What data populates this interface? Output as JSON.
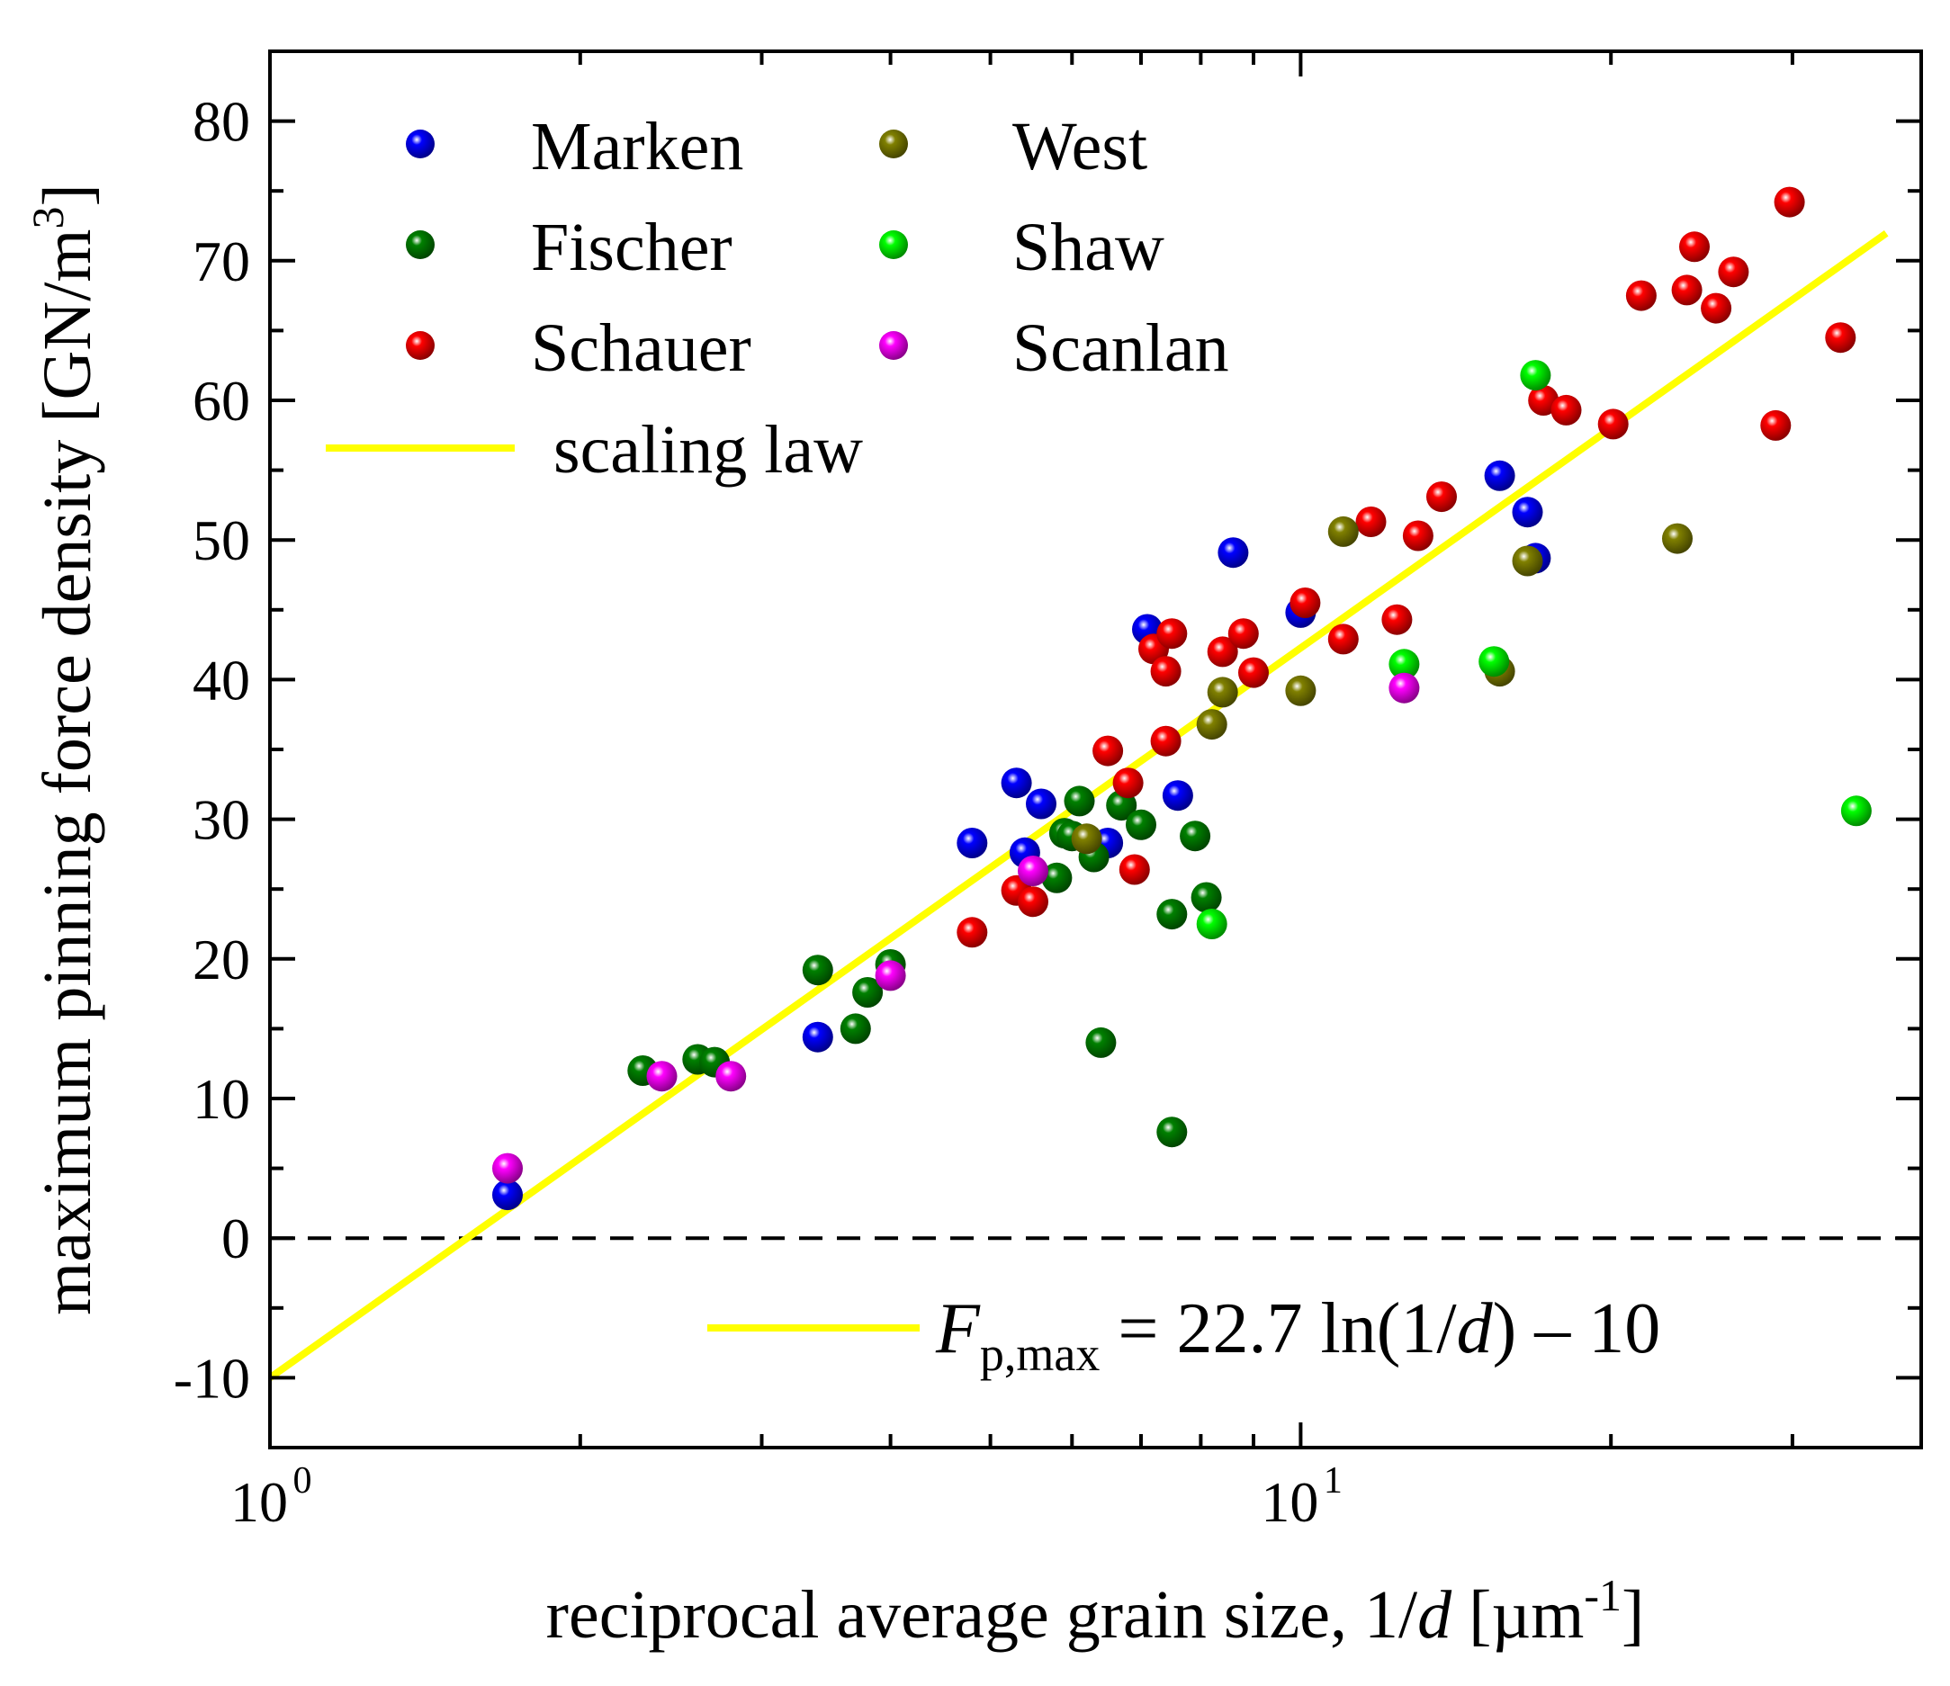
{
  "chart_data": {
    "type": "scatter",
    "x_scale": "log",
    "xlim": [
      1,
      40
    ],
    "ylim": [
      -15,
      85
    ],
    "grid": false,
    "legend_position": "top-left",
    "xlabel": {
      "main": "reciprocal average grain size, 1/",
      "italic": "d",
      "unit_open": " [µm",
      "unit_sup": "-1",
      "unit_close": "]"
    },
    "ylabel": {
      "main": "maximum pinning force density [GN/m",
      "sup": "3",
      "close": "]"
    },
    "x_ticks": [
      {
        "value": 1,
        "base": "10",
        "exp": "0"
      },
      {
        "value": 10,
        "base": "10",
        "exp": "1"
      }
    ],
    "x_minor_ticks": [
      2,
      3,
      4,
      5,
      6,
      7,
      8,
      9,
      20,
      30
    ],
    "y_ticks": [
      {
        "value": -10,
        "label": "-10"
      },
      {
        "value": 0,
        "label": "0"
      },
      {
        "value": 10,
        "label": "10"
      },
      {
        "value": 20,
        "label": "20"
      },
      {
        "value": 30,
        "label": "30"
      },
      {
        "value": 40,
        "label": "40"
      },
      {
        "value": 50,
        "label": "50"
      },
      {
        "value": 60,
        "label": "60"
      },
      {
        "value": 70,
        "label": "70"
      },
      {
        "value": 80,
        "label": "80"
      }
    ],
    "y_minor_step": 5,
    "reference_line": {
      "y": 0,
      "style": "dashed",
      "color": "#000000"
    },
    "series": [
      {
        "name": "Marken",
        "color": "#0000ff",
        "points": [
          [
            1.7,
            3.1
          ],
          [
            3.4,
            14.4
          ],
          [
            4.8,
            28.3
          ],
          [
            5.3,
            32.6
          ],
          [
            5.4,
            27.6
          ],
          [
            5.6,
            31.1
          ],
          [
            6.5,
            28.3
          ],
          [
            7.1,
            43.6
          ],
          [
            7.6,
            31.7
          ],
          [
            8.6,
            49.1
          ],
          [
            10.0,
            44.8
          ],
          [
            15.6,
            54.6
          ],
          [
            16.6,
            52.0
          ],
          [
            16.9,
            48.7
          ]
        ]
      },
      {
        "name": "Fischer",
        "color": "#008000",
        "points": [
          [
            2.3,
            12.0
          ],
          [
            2.6,
            12.8
          ],
          [
            2.7,
            12.6
          ],
          [
            3.4,
            19.2
          ],
          [
            3.7,
            15.0
          ],
          [
            3.8,
            17.6
          ],
          [
            4.0,
            19.6
          ],
          [
            5.8,
            25.8
          ],
          [
            5.9,
            29.0
          ],
          [
            6.0,
            28.8
          ],
          [
            6.1,
            31.3
          ],
          [
            6.3,
            27.3
          ],
          [
            6.4,
            14.0
          ],
          [
            6.7,
            31.0
          ],
          [
            7.0,
            29.6
          ],
          [
            7.5,
            23.2
          ],
          [
            7.5,
            7.6
          ],
          [
            7.9,
            28.8
          ],
          [
            8.1,
            24.4
          ]
        ]
      },
      {
        "name": "Schauer",
        "color": "#ff0000",
        "points": [
          [
            4.8,
            21.9
          ],
          [
            5.3,
            24.9
          ],
          [
            5.5,
            24.1
          ],
          [
            6.5,
            34.9
          ],
          [
            6.8,
            32.6
          ],
          [
            6.9,
            26.4
          ],
          [
            7.2,
            42.2
          ],
          [
            7.4,
            35.6
          ],
          [
            7.4,
            40.6
          ],
          [
            7.5,
            43.3
          ],
          [
            8.4,
            42.0
          ],
          [
            8.8,
            43.3
          ],
          [
            9.0,
            40.5
          ],
          [
            10.1,
            45.5
          ],
          [
            11.0,
            42.9
          ],
          [
            11.7,
            51.3
          ],
          [
            12.4,
            44.3
          ],
          [
            13.0,
            50.3
          ],
          [
            13.7,
            53.1
          ],
          [
            20.1,
            58.3
          ],
          [
            17.2,
            60.0
          ],
          [
            18.1,
            59.3
          ],
          [
            21.4,
            67.5
          ],
          [
            23.7,
            67.9
          ],
          [
            24.1,
            71.0
          ],
          [
            25.3,
            66.6
          ],
          [
            26.3,
            69.2
          ],
          [
            28.9,
            58.2
          ],
          [
            29.8,
            74.2
          ],
          [
            33.4,
            64.5
          ]
        ]
      },
      {
        "name": "West",
        "color": "#808000",
        "points": [
          [
            6.2,
            28.6
          ],
          [
            8.2,
            36.8
          ],
          [
            8.4,
            39.1
          ],
          [
            10.0,
            39.2
          ],
          [
            11.0,
            50.6
          ],
          [
            15.6,
            40.6
          ],
          [
            16.6,
            48.5
          ],
          [
            23.2,
            50.1
          ]
        ]
      },
      {
        "name": "Shaw",
        "color": "#00ff00",
        "points": [
          [
            8.2,
            22.5
          ],
          [
            12.6,
            41.1
          ],
          [
            15.4,
            41.3
          ],
          [
            16.9,
            61.8
          ],
          [
            34.6,
            30.6
          ]
        ]
      },
      {
        "name": "Scanlan",
        "color": "#ff00ff",
        "points": [
          [
            1.7,
            5.0
          ],
          [
            2.4,
            11.6
          ],
          [
            2.8,
            11.6
          ],
          [
            4.0,
            18.8
          ],
          [
            5.5,
            26.3
          ],
          [
            12.6,
            39.4
          ]
        ]
      }
    ],
    "fit": {
      "legend_label": "scaling law",
      "color": "#ffff00",
      "slope": 22.7,
      "intercept": -10,
      "x_range": [
        1,
        37
      ]
    },
    "equation": {
      "F": "F",
      "sub": "p,max",
      "middle": " = 22.7 ln(1/",
      "d": "d",
      "end": ") – 10"
    }
  }
}
